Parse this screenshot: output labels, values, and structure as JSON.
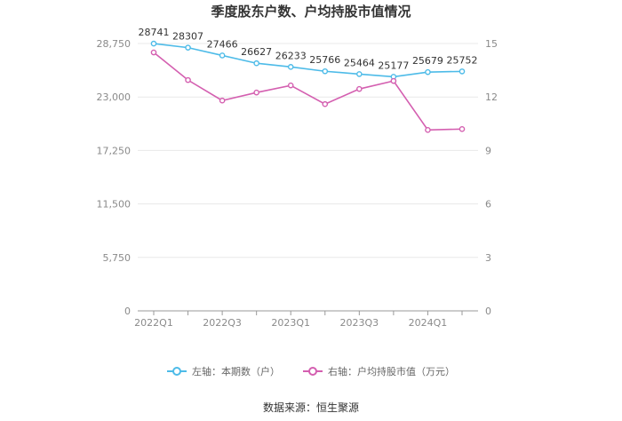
{
  "title": "季度股东户数、户均持股市值情况",
  "source": "数据来源：恒生聚源",
  "colors": {
    "left_series": "#4dbbe8",
    "right_series": "#d45fb0",
    "axis": "#999999",
    "grid": "#e8e8e8"
  },
  "chart_data": {
    "type": "line",
    "title": "季度股东户数、户均持股市值情况",
    "x": [
      "2022Q1",
      "2022Q2",
      "2022Q3",
      "2022Q4",
      "2023Q1",
      "2023Q2",
      "2023Q3",
      "2023Q4",
      "2024Q1",
      "2024Q2"
    ],
    "x_tick_labels": [
      "2022Q1",
      "2022Q3",
      "2023Q1",
      "2023Q3",
      "2024Q1"
    ],
    "left_axis": {
      "ticks": [
        "0",
        "5,750",
        "11,500",
        "17,250",
        "23,000",
        "28,750"
      ],
      "ylim": [
        0,
        28750
      ]
    },
    "right_axis": {
      "ticks": [
        "0",
        "3",
        "6",
        "9",
        "12",
        "15"
      ],
      "ylim": [
        0,
        15
      ]
    },
    "series": [
      {
        "name": "左轴：本期数（户）",
        "axis": "left",
        "values": [
          28741,
          28307,
          27466,
          26627,
          26233,
          25766,
          25464,
          25177,
          25679,
          25752
        ],
        "labels": [
          "28741",
          "28307",
          "27466",
          "26627",
          "26233",
          "25766",
          "25464",
          "25177",
          "25679",
          "25752"
        ]
      },
      {
        "name": "右轴：户均持股市值（万元）",
        "axis": "right",
        "values": [
          14.5,
          12.95,
          11.8,
          12.25,
          12.65,
          11.6,
          12.45,
          12.9,
          10.15,
          10.2
        ]
      }
    ],
    "grid": true,
    "legend_position": "bottom"
  }
}
